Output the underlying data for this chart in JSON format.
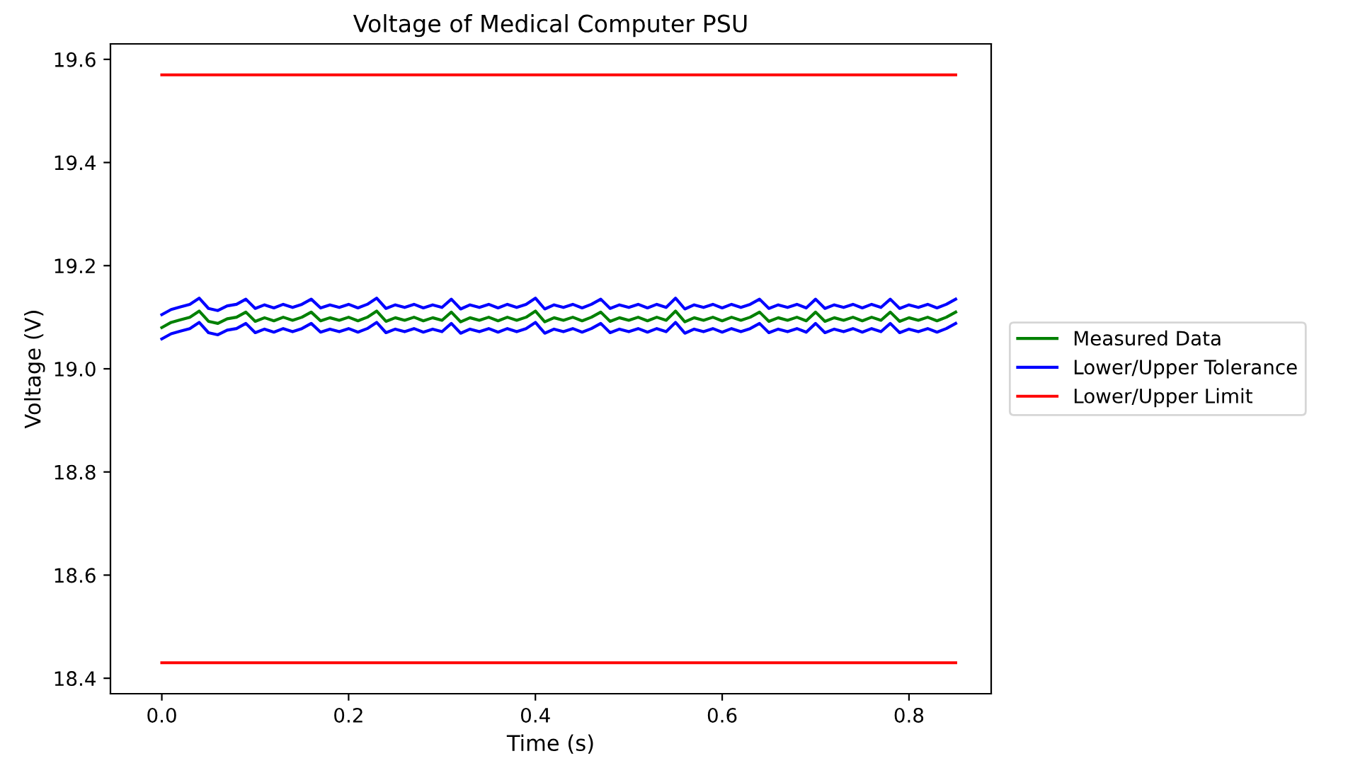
{
  "chart_data": {
    "type": "line",
    "title": "Voltage of Medical Computer PSU",
    "xlabel": "Time (s)",
    "ylabel": "Voltage (V)",
    "x": [
      0,
      0.01,
      0.02,
      0.03,
      0.04,
      0.05,
      0.06,
      0.07,
      0.08,
      0.09,
      0.1,
      0.11,
      0.12,
      0.13,
      0.14,
      0.15,
      0.16,
      0.17,
      0.18,
      0.19,
      0.2,
      0.21,
      0.22,
      0.23,
      0.24,
      0.25,
      0.26,
      0.27,
      0.28,
      0.29,
      0.3,
      0.31,
      0.32,
      0.33,
      0.34,
      0.35,
      0.36,
      0.37,
      0.38,
      0.39,
      0.4,
      0.41,
      0.42,
      0.43,
      0.44,
      0.45,
      0.46,
      0.47,
      0.48,
      0.49,
      0.5,
      0.51,
      0.52,
      0.53,
      0.54,
      0.55,
      0.56,
      0.57,
      0.58,
      0.59,
      0.6,
      0.61,
      0.62,
      0.63,
      0.64,
      0.65,
      0.66,
      0.67,
      0.68,
      0.69,
      0.7,
      0.71,
      0.72,
      0.73,
      0.74,
      0.75,
      0.76,
      0.77,
      0.78,
      0.79,
      0.8,
      0.81,
      0.82,
      0.83,
      0.84,
      0.85
    ],
    "series": [
      {
        "name": "Measured Data",
        "color": "#008000",
        "values": [
          19.08,
          19.09,
          19.095,
          19.1,
          19.112,
          19.092,
          19.088,
          19.097,
          19.1,
          19.11,
          19.092,
          19.099,
          19.093,
          19.1,
          19.094,
          19.1,
          19.11,
          19.093,
          19.099,
          19.094,
          19.1,
          19.093,
          19.1,
          19.112,
          19.092,
          19.099,
          19.094,
          19.1,
          19.093,
          19.099,
          19.094,
          19.11,
          19.091,
          19.099,
          19.094,
          19.1,
          19.093,
          19.1,
          19.094,
          19.1,
          19.112,
          19.091,
          19.099,
          19.094,
          19.1,
          19.093,
          19.1,
          19.11,
          19.092,
          19.099,
          19.094,
          19.1,
          19.093,
          19.1,
          19.094,
          19.112,
          19.091,
          19.099,
          19.094,
          19.1,
          19.093,
          19.1,
          19.094,
          19.1,
          19.11,
          19.092,
          19.099,
          19.094,
          19.1,
          19.093,
          19.11,
          19.092,
          19.099,
          19.094,
          19.1,
          19.093,
          19.1,
          19.094,
          19.11,
          19.092,
          19.099,
          19.094,
          19.1,
          19.093,
          19.1,
          19.11
        ]
      },
      {
        "name": "Lower/Upper Tolerance",
        "color": "#0000ff",
        "values": [
          19.058,
          19.068,
          19.073,
          19.078,
          19.09,
          19.07,
          19.066,
          19.075,
          19.078,
          19.088,
          19.07,
          19.077,
          19.071,
          19.078,
          19.072,
          19.078,
          19.088,
          19.071,
          19.077,
          19.072,
          19.078,
          19.071,
          19.078,
          19.09,
          19.07,
          19.077,
          19.072,
          19.078,
          19.071,
          19.077,
          19.072,
          19.088,
          19.069,
          19.077,
          19.072,
          19.078,
          19.071,
          19.078,
          19.072,
          19.078,
          19.09,
          19.069,
          19.077,
          19.072,
          19.078,
          19.071,
          19.078,
          19.088,
          19.07,
          19.077,
          19.072,
          19.078,
          19.071,
          19.078,
          19.072,
          19.09,
          19.069,
          19.077,
          19.072,
          19.078,
          19.071,
          19.078,
          19.072,
          19.078,
          19.088,
          19.07,
          19.077,
          19.072,
          19.078,
          19.071,
          19.088,
          19.07,
          19.077,
          19.072,
          19.078,
          19.071,
          19.078,
          19.072,
          19.088,
          19.07,
          19.077,
          19.072,
          19.078,
          19.071,
          19.078,
          19.088
        ]
      },
      {
        "color": "#0000ff",
        "values": [
          19.105,
          19.115,
          19.12,
          19.125,
          19.137,
          19.117,
          19.113,
          19.122,
          19.125,
          19.135,
          19.117,
          19.124,
          19.118,
          19.125,
          19.119,
          19.125,
          19.135,
          19.118,
          19.124,
          19.119,
          19.125,
          19.118,
          19.125,
          19.137,
          19.117,
          19.124,
          19.119,
          19.125,
          19.118,
          19.124,
          19.119,
          19.135,
          19.116,
          19.124,
          19.119,
          19.125,
          19.118,
          19.125,
          19.119,
          19.125,
          19.137,
          19.116,
          19.124,
          19.119,
          19.125,
          19.118,
          19.125,
          19.135,
          19.117,
          19.124,
          19.119,
          19.125,
          19.118,
          19.125,
          19.119,
          19.137,
          19.116,
          19.124,
          19.119,
          19.125,
          19.118,
          19.125,
          19.119,
          19.125,
          19.135,
          19.117,
          19.124,
          19.119,
          19.125,
          19.118,
          19.135,
          19.117,
          19.124,
          19.119,
          19.125,
          19.118,
          19.125,
          19.119,
          19.135,
          19.117,
          19.124,
          19.119,
          19.125,
          19.118,
          19.125,
          19.135
        ]
      },
      {
        "name": "Lower/Upper Limit",
        "color": "#ff0000",
        "values": [
          18.43,
          18.43,
          18.43,
          18.43,
          18.43,
          18.43,
          18.43,
          18.43,
          18.43,
          18.43,
          18.43,
          18.43,
          18.43,
          18.43,
          18.43,
          18.43,
          18.43,
          18.43,
          18.43,
          18.43,
          18.43,
          18.43,
          18.43,
          18.43,
          18.43,
          18.43,
          18.43,
          18.43,
          18.43,
          18.43,
          18.43,
          18.43,
          18.43,
          18.43,
          18.43,
          18.43,
          18.43,
          18.43,
          18.43,
          18.43,
          18.43,
          18.43,
          18.43,
          18.43,
          18.43,
          18.43,
          18.43,
          18.43,
          18.43,
          18.43,
          18.43,
          18.43,
          18.43,
          18.43,
          18.43,
          18.43,
          18.43,
          18.43,
          18.43,
          18.43,
          18.43,
          18.43,
          18.43,
          18.43,
          18.43,
          18.43,
          18.43,
          18.43,
          18.43,
          18.43,
          18.43,
          18.43,
          18.43,
          18.43,
          18.43,
          18.43,
          18.43,
          18.43,
          18.43,
          18.43,
          18.43,
          18.43,
          18.43,
          18.43,
          18.43,
          18.43
        ]
      },
      {
        "color": "#ff0000",
        "values": [
          19.57,
          19.57,
          19.57,
          19.57,
          19.57,
          19.57,
          19.57,
          19.57,
          19.57,
          19.57,
          19.57,
          19.57,
          19.57,
          19.57,
          19.57,
          19.57,
          19.57,
          19.57,
          19.57,
          19.57,
          19.57,
          19.57,
          19.57,
          19.57,
          19.57,
          19.57,
          19.57,
          19.57,
          19.57,
          19.57,
          19.57,
          19.57,
          19.57,
          19.57,
          19.57,
          19.57,
          19.57,
          19.57,
          19.57,
          19.57,
          19.57,
          19.57,
          19.57,
          19.57,
          19.57,
          19.57,
          19.57,
          19.57,
          19.57,
          19.57,
          19.57,
          19.57,
          19.57,
          19.57,
          19.57,
          19.57,
          19.57,
          19.57,
          19.57,
          19.57,
          19.57,
          19.57,
          19.57,
          19.57,
          19.57,
          19.57,
          19.57,
          19.57,
          19.57,
          19.57,
          19.57,
          19.57,
          19.57,
          19.57,
          19.57,
          19.57,
          19.57,
          19.57,
          19.57,
          19.57,
          19.57,
          19.57,
          19.57,
          19.57,
          19.57,
          19.57
        ]
      }
    ],
    "xlim": [
      -0.055,
      0.888
    ],
    "xticks": [
      {
        "value": 0,
        "label": "0.0"
      },
      0.2,
      0.4,
      0.6,
      0.8
    ],
    "ylim": [
      18.37,
      19.63
    ],
    "yticks": [
      18.4,
      18.6,
      18.8,
      {
        "value": 19,
        "label": "19.0"
      },
      19.2,
      19.4,
      19.6
    ],
    "legend": "right",
    "grid": false,
    "marker": "none",
    "line_style": "solid"
  }
}
